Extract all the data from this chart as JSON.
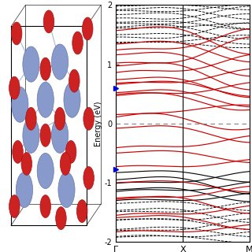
{
  "ylim": [
    -2,
    2
  ],
  "k_labels": [
    "Γ",
    "X",
    "M"
  ],
  "ylabel": "Energy (eV)",
  "y_ticks": [
    -2,
    -1,
    0,
    1,
    2
  ],
  "fermi_level": 0.0,
  "red_color": "#cc0000",
  "black_color": "#000000",
  "blue_color": "#0000dd",
  "background": "#ffffff"
}
